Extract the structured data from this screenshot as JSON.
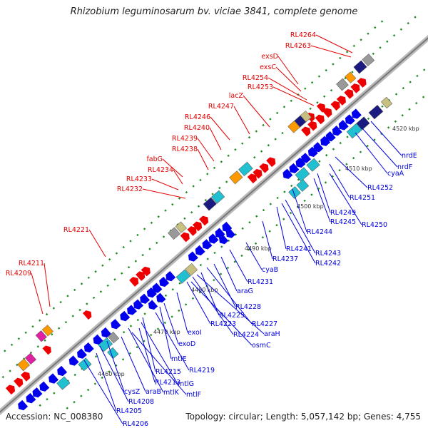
{
  "title": "Rhizobium leguminosarum bv. viciae 3841, complete genome",
  "footer": {
    "accession": "Accession: NC_008380",
    "topology": "Topology: circular; Length: 5,057,142 bp; Genes: 4,755"
  },
  "colors": {
    "top_strand_label": "#e00000",
    "bottom_strand_label": "#0000dd",
    "backbone": "#aaaaaa",
    "gc_dots": "#228b22",
    "feature_red": "#ee0000",
    "feature_blue": "#0000ee",
    "feature_cyan": "#20c0d0",
    "feature_orange": "#ff9900",
    "feature_navy": "#1a1a80",
    "feature_gray": "#999999",
    "feature_khaki": "#c8c080",
    "feature_magenta": "#e020a0"
  },
  "kbp_ticks": [
    "4460 kbp",
    "4470 kbp",
    "4480 kbp",
    "4490 kbp",
    "4500 kbp",
    "4510 kbp",
    "4520 kbp"
  ],
  "top_genes": [
    "RL4264",
    "RL4263",
    "exsD",
    "exsC",
    "RL4254",
    "RL4253",
    "lacZ",
    "RL4247",
    "RL4246",
    "RL4240",
    "RL4239",
    "RL4238",
    "fabG",
    "RL4234",
    "RL4233",
    "RL4232",
    "RL4221",
    "RL4211",
    "RL4209"
  ],
  "bottom_genes": [
    "nrdE",
    "nrdF",
    "cyaA",
    "RL4252",
    "RL4251",
    "RL4250",
    "RL4249",
    "RL4245",
    "RL4244",
    "RL4243",
    "RL4242",
    "RL4241",
    "RL4237",
    "cyaB",
    "RL4231",
    "araG",
    "RL4228",
    "RL4227",
    "RL4225",
    "araH",
    "RL4224",
    "RL4223",
    "osmC",
    "exoI",
    "exoD",
    "mtlE",
    "RL4219",
    "RL4215",
    "mtlG",
    "RL4213",
    "mtlK",
    "mtlF",
    "araB",
    "cysZ",
    "RL4208",
    "RL4205",
    "RL4206"
  ]
}
